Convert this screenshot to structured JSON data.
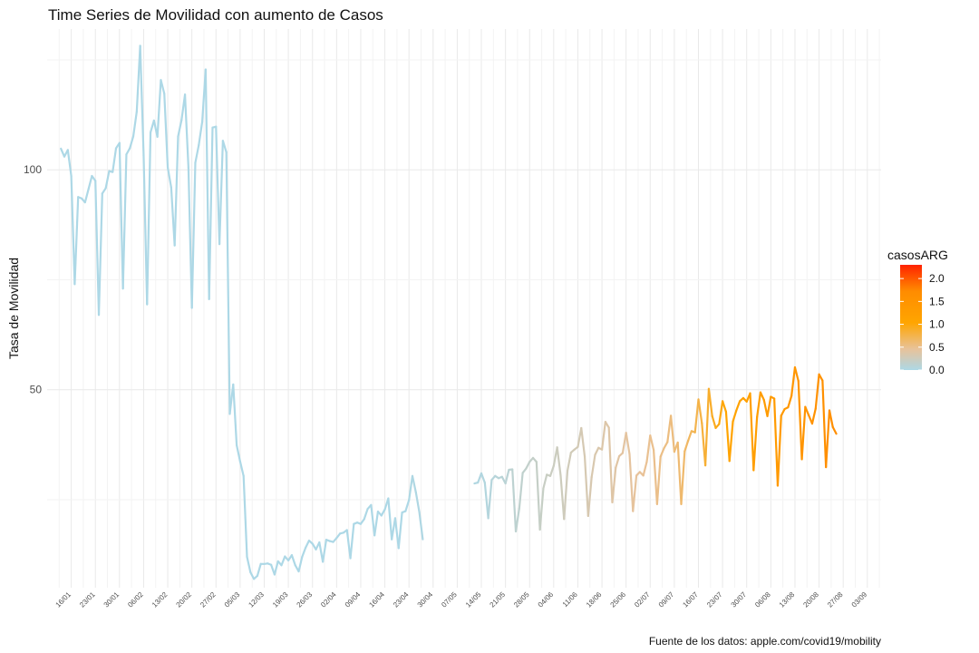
{
  "chart_data": {
    "type": "line",
    "title": "Time Series de Movilidad con aumento de Casos",
    "xlabel": "",
    "ylabel": "Tasa de Movilidad",
    "caption": "Fuente de los datos: apple.com/covid19/mobility",
    "ylim": [
      5,
      132
    ],
    "y_ticks": [
      50,
      100
    ],
    "x_ticks": [
      "16/01",
      "23/01",
      "30/01",
      "06/02",
      "13/02",
      "20/02",
      "27/02",
      "05/03",
      "12/03",
      "19/03",
      "26/03",
      "02/04",
      "09/04",
      "16/04",
      "23/04",
      "30/04",
      "07/05",
      "14/05",
      "21/05",
      "28/05",
      "04/06",
      "11/06",
      "18/06",
      "25/06",
      "02/07",
      "09/07",
      "16/07",
      "23/07",
      "30/07",
      "06/08",
      "13/08",
      "20/08",
      "27/08",
      "03/09"
    ],
    "grid": true,
    "legend": {
      "title": "casosARG",
      "position": "right",
      "ticks": [
        "0.0",
        "0.5",
        "1.0",
        "1.5",
        "2.0"
      ],
      "range": [
        0,
        2.3
      ],
      "colors": [
        "#add8e6",
        "#e8c29a",
        "#ffa500",
        "#ff8c00",
        "#ff2200"
      ]
    },
    "series": [
      {
        "segments": [
          {
            "start_date": "2020-01-13",
            "values": [
              104.8,
              103.0,
              104.5,
              98.6,
              74.0,
              93.8,
              93.5,
              92.6,
              95.6,
              98.6,
              97.5,
              67.0,
              94.6,
              95.8,
              99.7,
              99.5,
              104.9,
              106.1,
              73.0,
              103.5,
              104.9,
              107.6,
              113.2,
              128.2,
              103.3,
              69.4,
              108.5,
              111.2,
              107.5,
              120.4,
              117.3,
              100.5,
              96.0,
              82.8,
              107.6,
              111.3,
              117.1,
              100.6,
              68.6,
              101.6,
              105.6,
              110.9,
              122.8,
              70.6,
              109.6,
              109.8,
              83.1,
              106.6,
              104.0,
              44.5,
              51.2,
              37.4,
              33.7,
              30.4,
              12.0,
              8.5,
              7.0,
              7.7,
              10.4,
              10.4,
              10.5,
              10.2,
              8.0,
              11.0,
              10.1,
              12.1,
              11.2,
              12.4,
              10.1,
              8.7,
              12.0,
              14.1,
              15.7,
              15.0,
              13.7,
              15.3,
              10.9,
              15.9,
              15.6,
              15.4,
              16.3,
              17.3,
              17.5,
              18.1,
              11.7,
              19.5,
              19.8,
              19.5,
              20.6,
              22.9,
              23.8,
              16.9,
              22.3,
              21.4,
              22.8,
              25.3,
              16.0,
              20.8,
              14.0,
              22.1,
              22.4,
              24.9,
              30.4,
              26.7,
              22.2,
              16.0
            ],
            "casos": [
              0,
              0,
              0,
              0,
              0,
              0,
              0,
              0,
              0,
              0,
              0,
              0,
              0,
              0,
              0,
              0,
              0,
              0,
              0,
              0,
              0,
              0,
              0,
              0,
              0,
              0,
              0,
              0,
              0,
              0,
              0,
              0,
              0,
              0,
              0,
              0,
              0,
              0,
              0,
              0,
              0,
              0,
              0,
              0,
              0,
              0,
              0,
              0,
              0,
              0,
              0,
              0,
              0,
              0,
              0,
              0,
              0,
              0,
              0,
              0,
              0,
              0,
              0,
              0,
              0,
              0,
              0,
              0,
              0,
              0,
              0,
              0,
              0,
              0,
              0,
              0,
              0,
              0,
              0,
              0,
              0,
              0,
              0,
              0,
              0,
              0,
              0,
              0,
              0,
              0,
              0,
              0,
              0,
              0,
              0,
              0,
              0,
              0,
              0,
              0,
              0,
              0,
              0.02,
              0.02,
              0.02,
              0.02
            ]
          },
          {
            "start_date": "2020-05-12",
            "values": [
              28.7,
              28.9,
              31.0,
              28.9,
              20.8,
              29.5,
              30.4,
              29.9,
              30.2,
              28.7,
              31.8,
              31.9,
              17.8,
              23.0,
              31.1,
              32.1,
              33.6,
              34.5,
              33.6,
              18.2,
              27.6,
              30.7,
              30.4,
              32.7,
              36.9,
              30.6,
              20.6,
              31.6,
              35.7,
              36.4,
              37.0,
              41.3,
              34.8,
              21.3,
              30.1,
              35.2,
              36.8,
              36.4,
              42.7,
              41.4,
              24.4,
              32.3,
              34.9,
              35.6,
              40.2,
              35.4,
              22.4,
              30.5,
              31.3,
              30.5,
              33.6,
              39.6,
              36.3,
              24.0,
              34.8,
              36.7,
              38.1,
              44.1,
              35.9,
              38.0,
              24.0,
              36.0,
              38.4,
              40.6,
              40.3,
              47.8,
              42.4,
              32.8,
              50.2,
              44.0,
              41.3,
              42.2,
              47.4,
              45.0,
              33.8,
              42.8,
              45.3,
              47.4,
              48.1,
              47.3,
              49.2,
              31.7,
              43.8,
              49.4,
              47.7,
              44.0,
              48.4,
              48.0,
              28.2,
              44.1,
              45.6,
              46.0,
              48.6,
              55.1,
              52.0,
              34.2,
              46.1,
              44.2,
              42.3,
              45.7,
              53.5,
              52.1,
              32.4,
              45.3,
              41.5,
              40.0
            ],
            "casos": [
              0.03,
              0.03,
              0.04,
              0.05,
              0.06,
              0.07,
              0.08,
              0.09,
              0.1,
              0.11,
              0.12,
              0.13,
              0.14,
              0.15,
              0.16,
              0.17,
              0.18,
              0.19,
              0.2,
              0.21,
              0.22,
              0.23,
              0.24,
              0.25,
              0.26,
              0.27,
              0.28,
              0.29,
              0.3,
              0.31,
              0.32,
              0.33,
              0.34,
              0.35,
              0.36,
              0.37,
              0.38,
              0.39,
              0.4,
              0.41,
              0.42,
              0.43,
              0.44,
              0.45,
              0.46,
              0.47,
              0.48,
              0.49,
              0.5,
              0.51,
              0.52,
              0.53,
              0.54,
              0.55,
              0.56,
              0.57,
              0.58,
              0.59,
              0.6,
              0.62,
              0.64,
              0.66,
              0.68,
              0.7,
              0.73,
              0.76,
              0.79,
              0.82,
              0.85,
              0.88,
              0.91,
              0.94,
              0.97,
              1.0,
              1.03,
              1.06,
              1.08,
              1.1,
              1.12,
              1.14,
              1.16,
              1.18,
              1.2,
              1.22,
              1.24,
              1.26,
              1.28,
              1.3,
              1.32,
              1.34,
              1.36,
              1.38,
              1.4,
              1.42,
              1.44,
              1.46,
              1.48,
              1.5,
              1.52,
              1.54,
              1.56,
              1.58,
              1.6,
              1.62,
              1.64,
              1.66
            ]
          }
        ]
      }
    ]
  }
}
